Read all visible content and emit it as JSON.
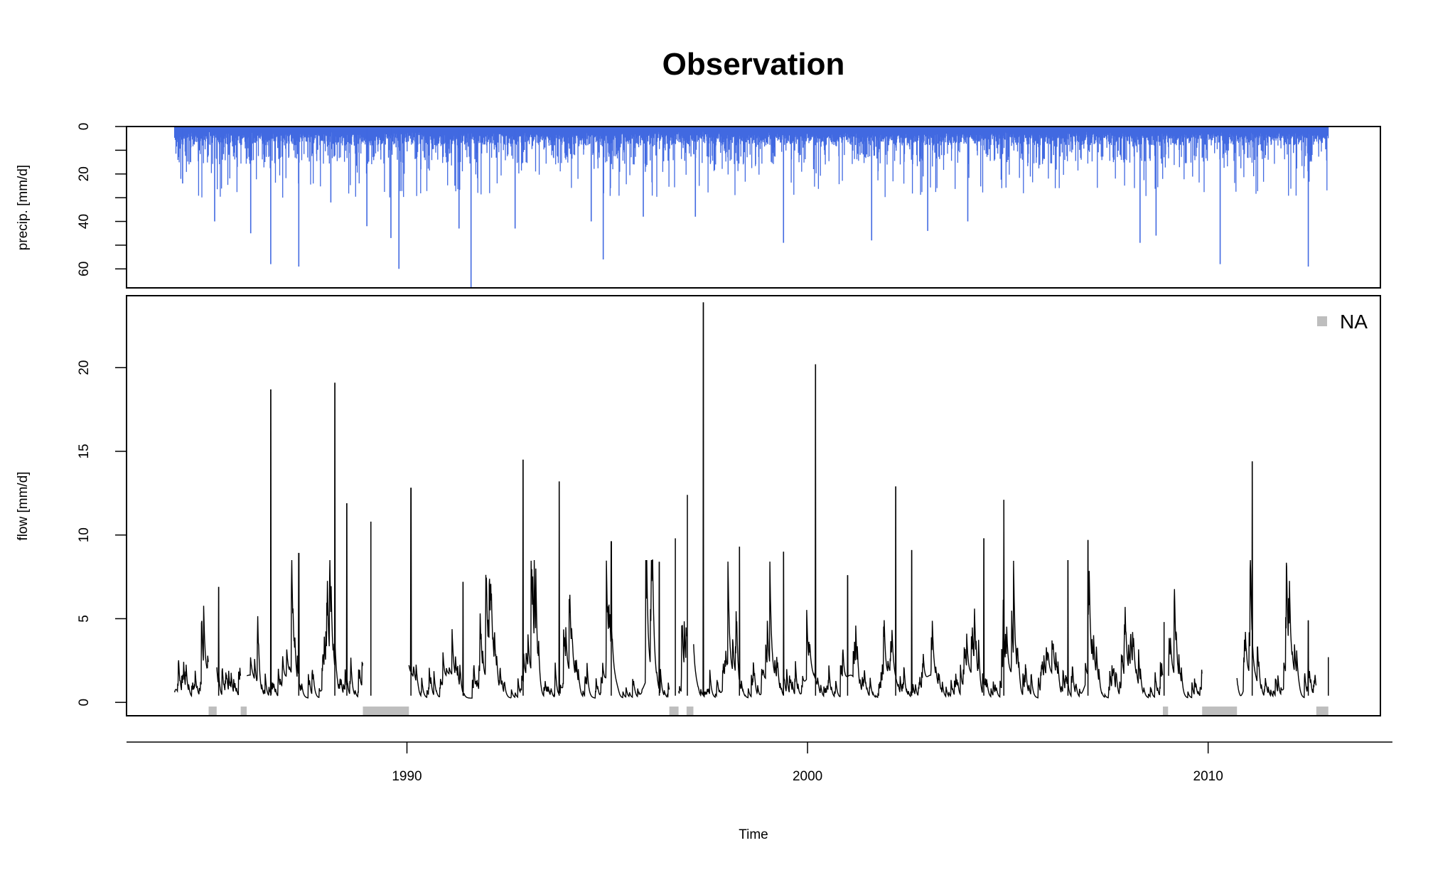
{
  "chart_data": {
    "type": "line",
    "title": "Observation",
    "xlabel": "Time",
    "x_ticks": [
      "1990",
      "2000",
      "2010"
    ],
    "x_range_years": [
      1983.0,
      2014.3
    ],
    "data_range_years": [
      1984.2,
      2013.0
    ],
    "colors": {
      "precip": "#4169e1",
      "flow": "#000000",
      "na": "#bebebe"
    },
    "precip_panel": {
      "ylabel": "precip. [mm/d]",
      "y_reversed": true,
      "ylim": [
        0,
        68
      ],
      "y_ticks": [
        "0",
        "20",
        "40",
        "60"
      ],
      "y_ticks_minor": [
        10,
        30,
        50
      ],
      "peaks": [
        {
          "year": 1984.4,
          "value": 24
        },
        {
          "year": 1985.2,
          "value": 40
        },
        {
          "year": 1986.1,
          "value": 45
        },
        {
          "year": 1986.6,
          "value": 58
        },
        {
          "year": 1987.3,
          "value": 59
        },
        {
          "year": 1988.1,
          "value": 32
        },
        {
          "year": 1989.0,
          "value": 42
        },
        {
          "year": 1989.6,
          "value": 47
        },
        {
          "year": 1989.8,
          "value": 60
        },
        {
          "year": 1991.3,
          "value": 43
        },
        {
          "year": 1991.6,
          "value": 68
        },
        {
          "year": 1992.7,
          "value": 43
        },
        {
          "year": 1994.6,
          "value": 40
        },
        {
          "year": 1994.9,
          "value": 56
        },
        {
          "year": 1995.9,
          "value": 38
        },
        {
          "year": 1997.2,
          "value": 38
        },
        {
          "year": 1999.4,
          "value": 49
        },
        {
          "year": 2001.6,
          "value": 48
        },
        {
          "year": 2003.0,
          "value": 44
        },
        {
          "year": 2004.0,
          "value": 40
        },
        {
          "year": 2008.3,
          "value": 49
        },
        {
          "year": 2008.7,
          "value": 46
        },
        {
          "year": 2010.3,
          "value": 58
        },
        {
          "year": 2012.5,
          "value": 59
        }
      ]
    },
    "flow_panel": {
      "ylabel": "flow [mm/d]",
      "ylim": [
        -0.8,
        24.3
      ],
      "y_ticks": [
        "0",
        "5",
        "10",
        "15",
        "20"
      ],
      "legend": {
        "label": "NA",
        "position": "top-right"
      },
      "peaks": [
        {
          "year": 1985.3,
          "value": 6.9
        },
        {
          "year": 1986.6,
          "value": 18.7
        },
        {
          "year": 1987.3,
          "value": 8.9
        },
        {
          "year": 1988.2,
          "value": 19.1
        },
        {
          "year": 1988.5,
          "value": 11.9
        },
        {
          "year": 1989.1,
          "value": 10.8
        },
        {
          "year": 1990.1,
          "value": 12.8
        },
        {
          "year": 1991.4,
          "value": 7.2
        },
        {
          "year": 1992.9,
          "value": 14.5
        },
        {
          "year": 1993.8,
          "value": 13.2
        },
        {
          "year": 1995.1,
          "value": 9.6
        },
        {
          "year": 1996.3,
          "value": 8.4
        },
        {
          "year": 1996.7,
          "value": 9.8
        },
        {
          "year": 1997.0,
          "value": 12.4
        },
        {
          "year": 1997.4,
          "value": 23.9
        },
        {
          "year": 1998.3,
          "value": 9.3
        },
        {
          "year": 1999.4,
          "value": 9.0
        },
        {
          "year": 2000.2,
          "value": 20.2
        },
        {
          "year": 2001.0,
          "value": 7.6
        },
        {
          "year": 2002.2,
          "value": 12.9
        },
        {
          "year": 2002.6,
          "value": 9.1
        },
        {
          "year": 2004.4,
          "value": 9.8
        },
        {
          "year": 2004.9,
          "value": 12.1
        },
        {
          "year": 2006.5,
          "value": 8.5
        },
        {
          "year": 2007.0,
          "value": 9.7
        },
        {
          "year": 2008.9,
          "value": 4.8
        },
        {
          "year": 2011.1,
          "value": 14.4
        },
        {
          "year": 2012.5,
          "value": 4.9
        },
        {
          "year": 2013.0,
          "value": 2.7
        }
      ],
      "na_periods": [
        [
          1985.05,
          1985.25
        ],
        [
          1985.85,
          1986.0
        ],
        [
          1988.9,
          1990.05
        ],
        [
          1996.55,
          1996.78
        ],
        [
          1996.98,
          1997.15
        ],
        [
          2008.87,
          2009.0
        ],
        [
          2009.85,
          2010.72
        ],
        [
          2012.7,
          2013.0
        ]
      ]
    }
  }
}
